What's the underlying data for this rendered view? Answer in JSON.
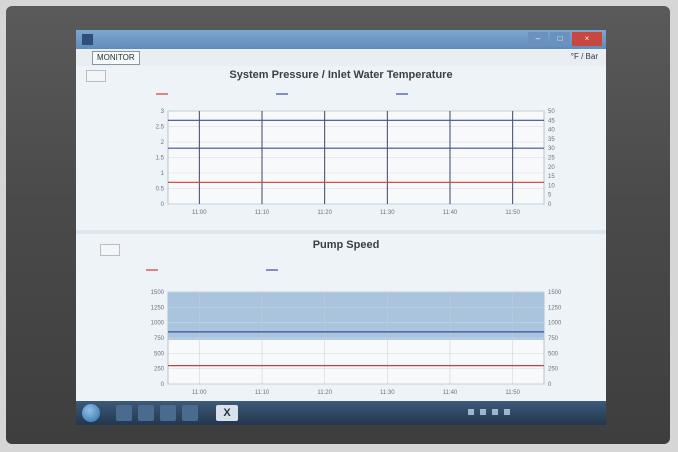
{
  "window": {
    "title": "",
    "controls": {
      "min": "–",
      "max": "□",
      "close": "×"
    }
  },
  "toolbar": {
    "monitor_tab": "MONITOR",
    "units_toggle": "°F / Bar"
  },
  "chart1": {
    "title": "System Pressure / Inlet Water Temperature",
    "left_ticks": [
      "3",
      "2.5",
      "2",
      "1.5",
      "1",
      "0.5",
      "0"
    ],
    "right_ticks": [
      "50",
      "45",
      "40",
      "35",
      "30",
      "25",
      "20",
      "15",
      "10",
      "5",
      "0"
    ],
    "x_ticks": [
      "11:00",
      "11:10",
      "11:20",
      "11:30",
      "11:40",
      "11:50"
    ],
    "legend": [
      "",
      "",
      ""
    ]
  },
  "chart2": {
    "title": "Pump Speed",
    "left_ticks": [
      "1500",
      "1250",
      "1000",
      "750",
      "500",
      "250",
      "0"
    ],
    "right_ticks": [
      "1500",
      "1250",
      "1000",
      "750",
      "500",
      "250",
      "0"
    ],
    "x_ticks": [
      "11:00",
      "11:10",
      "11:20",
      "11:30",
      "11:40",
      "11:50"
    ],
    "legend": [
      "",
      ""
    ]
  },
  "colors": {
    "plot_band": "#a9c4dc",
    "grid_line": "#3c4fa0",
    "pressure_line": "#d43b3b",
    "speed_line": "#3a4c9c"
  },
  "taskbar": {
    "tray_text": ""
  },
  "chart_data": [
    {
      "type": "line",
      "title": "System Pressure / Inlet Water Temperature",
      "x": [
        "11:00",
        "11:10",
        "11:20",
        "11:30",
        "11:40",
        "11:50"
      ],
      "ylim": [
        0,
        3
      ],
      "y2lim": [
        0,
        50
      ],
      "series": [
        {
          "axis": "left",
          "values": [
            0.7,
            0.7,
            0.7,
            0.7,
            0.7,
            0.7
          ],
          "color": "#d43b3b"
        },
        {
          "axis": "left",
          "values": [
            2.7,
            2.7,
            2.7,
            2.7,
            2.7,
            2.7
          ],
          "color": "#3c4fa0"
        },
        {
          "axis": "left",
          "values": [
            1.8,
            1.8,
            1.8,
            1.8,
            1.8,
            1.8
          ],
          "color": "#3c4fa0"
        }
      ],
      "grid": true
    },
    {
      "type": "line",
      "title": "Pump Speed",
      "x": [
        "11:00",
        "11:10",
        "11:20",
        "11:30",
        "11:40",
        "11:50"
      ],
      "ylim": [
        0,
        1500
      ],
      "series": [
        {
          "axis": "left",
          "values": [
            300,
            300,
            300,
            300,
            300,
            300
          ],
          "color": "#d43b3b"
        },
        {
          "axis": "left",
          "values": [
            850,
            850,
            850,
            850,
            850,
            850
          ],
          "color": "#3a4c9c"
        }
      ],
      "grid": true
    }
  ]
}
